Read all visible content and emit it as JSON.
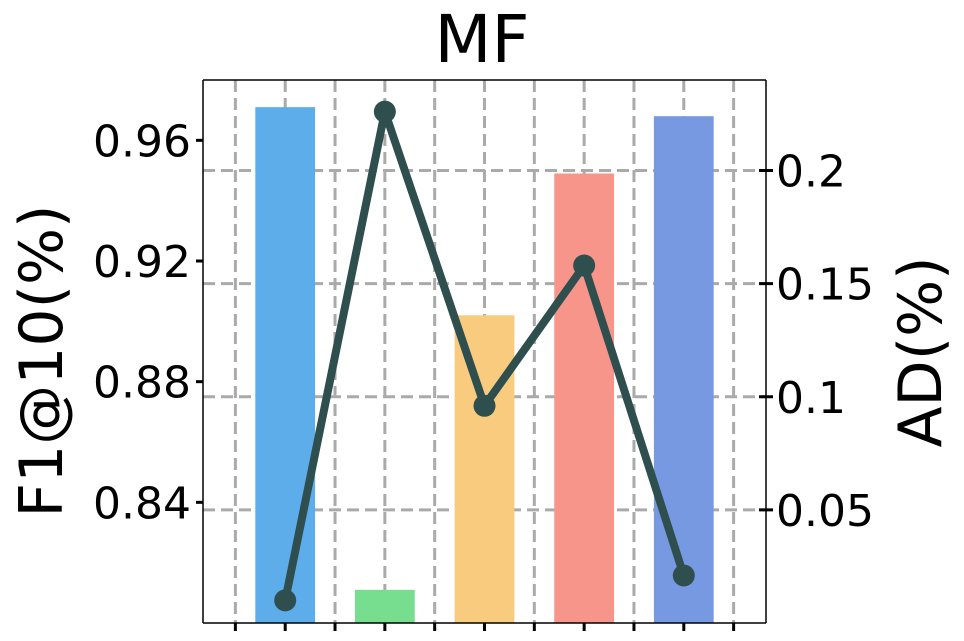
{
  "chart_data": {
    "type": "bar",
    "title": "MF",
    "xlabel": "",
    "ylabel": "F1@10(%)",
    "y2label": "AD(%)",
    "categories": [
      "",
      "",
      "",
      "",
      ""
    ],
    "bars": {
      "values": [
        0.971,
        0.811,
        0.902,
        0.949,
        0.968
      ],
      "colors": [
        "#5DADEA",
        "#77DD8F",
        "#F8CB7F",
        "#F7958A",
        "#7799E1"
      ]
    },
    "line": {
      "values": [
        0.01,
        0.226,
        0.096,
        0.158,
        0.021
      ],
      "color": "#2F4F4F"
    },
    "ylim": [
      0.8,
      0.98
    ],
    "y2lim": [
      0.0,
      0.24
    ],
    "yticks": [
      0.84,
      0.88,
      0.92,
      0.96
    ],
    "ytick_labels": [
      "0.84",
      "0.88",
      "0.92",
      "0.96"
    ],
    "y2ticks": [
      0.05,
      0.1,
      0.15,
      0.2
    ],
    "y2tick_labels": [
      "0.05",
      "0.1",
      "0.15",
      "0.2"
    ],
    "grid": true,
    "grid_color": "#AAAAAA"
  }
}
